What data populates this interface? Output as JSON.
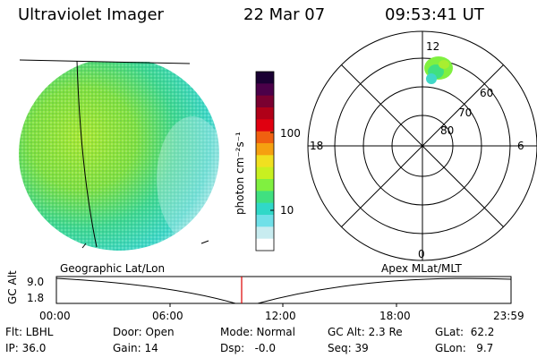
{
  "header": {
    "instrument": "Ultraviolet Imager",
    "date": "22 Mar 07",
    "time": "09:53:41 UT"
  },
  "colorbar": {
    "label": "photon cm⁻²s⁻¹",
    "ticks": [
      "100",
      "10"
    ],
    "colors": [
      "#1a0033",
      "#4b0049",
      "#7a0030",
      "#b00018",
      "#e00010",
      "#f06010",
      "#f5a010",
      "#f0e020",
      "#c8f020",
      "#80f040",
      "#40e080",
      "#30d8c8",
      "#70e0e8",
      "#c8ecf0",
      "#ffffff"
    ]
  },
  "polar": {
    "mlt_labels": {
      "top": "12",
      "left": "18",
      "right": "6",
      "bottom": "0"
    },
    "lat_labels": [
      "80",
      "70",
      "60"
    ]
  },
  "timeline": {
    "left_title": "Geographic Lat/Lon",
    "right_title": "Apex MLat/MLT",
    "axis_label": "GC Alt",
    "y_ticks": [
      "9.0",
      "1.8"
    ],
    "x_ticks": [
      "00:00",
      "06:00",
      "12:00",
      "18:00",
      "23:59"
    ],
    "current_marker_color": "#dd0000"
  },
  "info": {
    "row1": [
      "Flt: LBHL",
      "Door: Open",
      "Mode: Normal",
      "GC Alt: 2.3 Re",
      "GLat:  62.2"
    ],
    "row2": [
      "IP: 36.0",
      "Gain: 14",
      "Dsp:   -0.0",
      "Seq: 39",
      "GLon:   9.7"
    ]
  }
}
